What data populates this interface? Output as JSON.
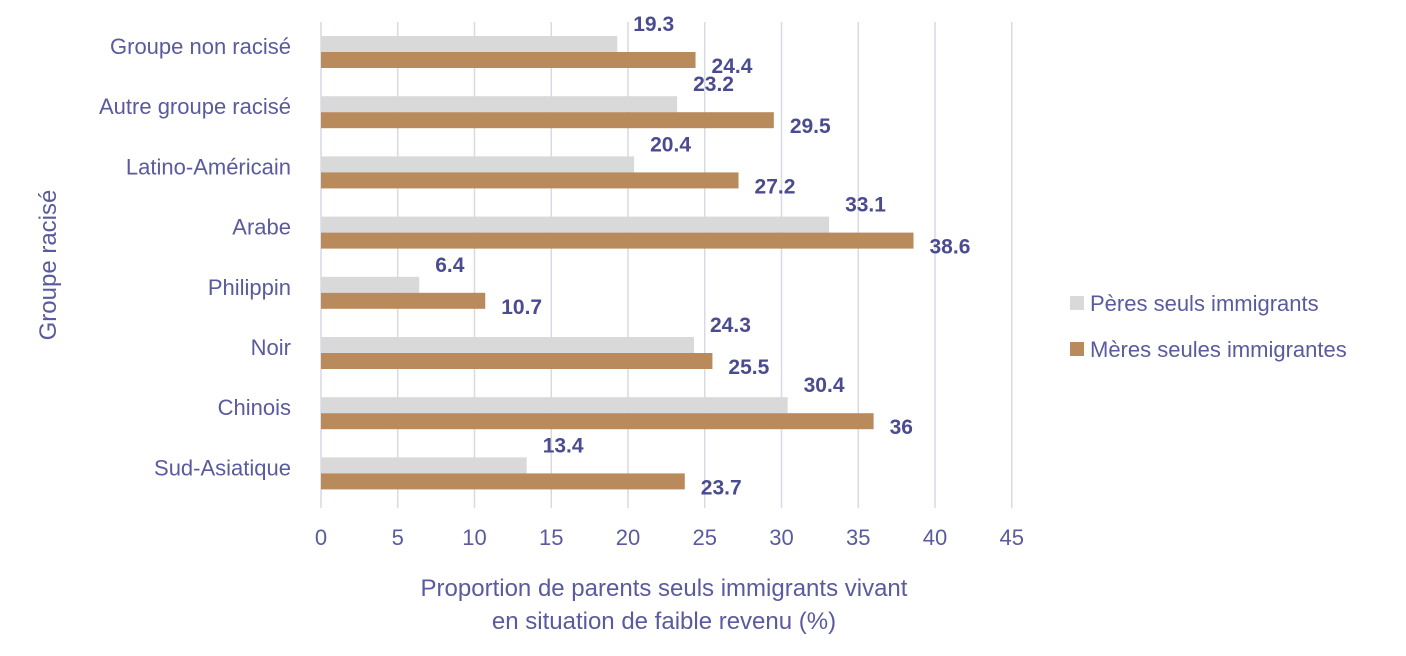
{
  "chart_data": {
    "type": "bar",
    "orientation": "horizontal",
    "categories": [
      "Groupe non racisé",
      "Autre groupe racisé",
      "Latino-Américain",
      "Arabe",
      "Philippin",
      "Noir",
      "Chinois",
      "Sud-Asiatique"
    ],
    "series": [
      {
        "name": "Pères seuls immigrants",
        "color": "#d9d9d9",
        "values": [
          19.3,
          23.2,
          20.4,
          33.1,
          6.4,
          24.3,
          30.4,
          13.4
        ]
      },
      {
        "name": "Mères seules immigrantes",
        "color": "#b98a5b",
        "values": [
          24.4,
          29.5,
          27.2,
          38.6,
          10.7,
          25.5,
          36,
          23.7
        ]
      }
    ],
    "xlabel_lines": [
      "Proportion de parents seuls immigrants vivant",
      "en situation de faible revenu (%)"
    ],
    "ylabel": "Groupe racisé",
    "xlim": [
      0,
      45
    ],
    "xticks": [
      0,
      5,
      10,
      15,
      20,
      25,
      30,
      35,
      40,
      45
    ],
    "grid": "vertical",
    "legend_position": "right",
    "data_labels": true
  }
}
